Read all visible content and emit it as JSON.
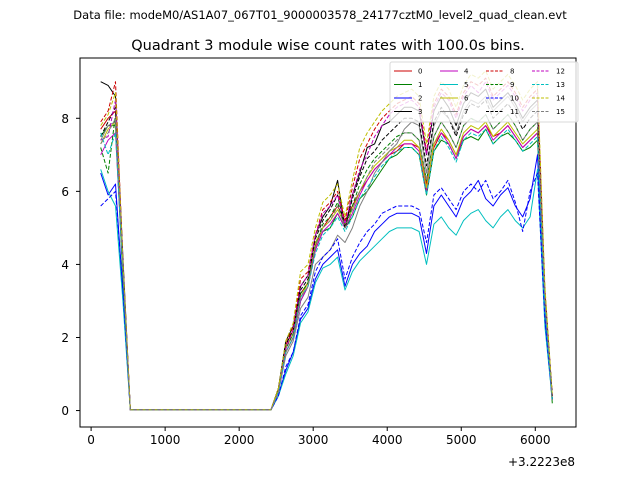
{
  "header": {
    "data_file": "Data file: modeM0/AS1A07_067T01_9000003578_24177cztM0_level2_quad_clean.evt"
  },
  "chart_data": {
    "type": "line",
    "title": "Quadrant 3 module wise count rates with 100.0s bins.",
    "xlabel": "",
    "ylabel": "",
    "x_offset_label": "+3.2223e8",
    "xlim": [
      -150,
      6550
    ],
    "ylim": [
      -0.45,
      9.65
    ],
    "x_ticks": [
      0,
      1000,
      2000,
      3000,
      4000,
      5000,
      6000
    ],
    "x_tick_labels": [
      "0",
      "1000",
      "2000",
      "3000",
      "4000",
      "5000",
      "6000"
    ],
    "y_ticks": [
      0,
      2,
      4,
      6,
      8
    ],
    "y_tick_labels": [
      "0",
      "2",
      "4",
      "6",
      "8"
    ],
    "grid": false,
    "legend_position": "top-right",
    "legend_columns": 4,
    "x": [
      130,
      230,
      330,
      430,
      530,
      630,
      730,
      830,
      930,
      1030,
      1130,
      1230,
      1330,
      1430,
      1530,
      1630,
      1730,
      1830,
      1930,
      2030,
      2130,
      2230,
      2330,
      2430,
      2530,
      2630,
      2730,
      2830,
      2930,
      3030,
      3130,
      3230,
      3330,
      3430,
      3530,
      3630,
      3730,
      3830,
      3930,
      4030,
      4130,
      4230,
      4330,
      4430,
      4530,
      4630,
      4730,
      4830,
      4930,
      5030,
      5130,
      5230,
      5330,
      5430,
      5530,
      5630,
      5730,
      5830,
      5930,
      6030,
      6130,
      6230
    ],
    "series": [
      {
        "name": "0",
        "color": "#cc0000",
        "dash": "solid",
        "values": [
          7.7,
          8.0,
          8.2,
          4.0,
          0.02,
          0.02,
          0.02,
          0.02,
          0.02,
          0.02,
          0.02,
          0.02,
          0.02,
          0.02,
          0.02,
          0.02,
          0.02,
          0.02,
          0.02,
          0.02,
          0.02,
          0.02,
          0.02,
          0.02,
          0.6,
          1.8,
          2.2,
          3.2,
          3.5,
          4.5,
          5.0,
          5.3,
          5.6,
          5.2,
          5.6,
          6.0,
          6.3,
          6.6,
          6.8,
          7.0,
          7.1,
          7.3,
          7.3,
          7.2,
          6.2,
          7.2,
          7.6,
          7.4,
          7.0,
          7.5,
          7.7,
          7.6,
          7.8,
          7.5,
          7.6,
          7.8,
          7.5,
          7.2,
          7.4,
          7.6,
          3.0,
          0.4
        ]
      },
      {
        "name": "1",
        "color": "#008000",
        "dash": "solid",
        "values": [
          7.5,
          7.8,
          7.8,
          3.6,
          0.02,
          0.02,
          0.02,
          0.02,
          0.02,
          0.02,
          0.02,
          0.02,
          0.02,
          0.02,
          0.02,
          0.02,
          0.02,
          0.02,
          0.02,
          0.02,
          0.02,
          0.02,
          0.02,
          0.02,
          0.5,
          1.6,
          2.0,
          3.0,
          3.4,
          4.4,
          4.9,
          5.0,
          5.4,
          5.0,
          5.3,
          5.8,
          6.0,
          6.3,
          6.6,
          6.9,
          7.0,
          7.2,
          7.2,
          7.0,
          5.9,
          7.1,
          7.4,
          7.3,
          6.9,
          7.4,
          7.5,
          7.4,
          7.7,
          7.3,
          7.5,
          7.6,
          7.4,
          7.1,
          7.2,
          7.4,
          2.8,
          0.2
        ]
      },
      {
        "name": "2",
        "color": "#0000ff",
        "dash": "solid",
        "values": [
          6.5,
          5.9,
          6.2,
          3.2,
          0.02,
          0.02,
          0.02,
          0.02,
          0.02,
          0.02,
          0.02,
          0.02,
          0.02,
          0.02,
          0.02,
          0.02,
          0.02,
          0.02,
          0.02,
          0.02,
          0.02,
          0.02,
          0.02,
          0.02,
          0.4,
          1.1,
          1.6,
          2.5,
          2.8,
          3.6,
          4.0,
          4.2,
          4.4,
          3.4,
          4.0,
          4.3,
          4.5,
          4.9,
          5.1,
          5.3,
          5.4,
          5.4,
          5.4,
          5.3,
          4.3,
          5.6,
          5.9,
          5.6,
          5.3,
          5.8,
          6.0,
          6.3,
          5.8,
          5.6,
          5.9,
          6.1,
          5.6,
          5.3,
          5.8,
          7.0,
          2.5,
          0.3
        ]
      },
      {
        "name": "3",
        "color": "#000000",
        "dash": "solid",
        "values": [
          9.0,
          8.9,
          8.6,
          4.2,
          0.02,
          0.02,
          0.02,
          0.02,
          0.02,
          0.02,
          0.02,
          0.02,
          0.02,
          0.02,
          0.02,
          0.02,
          0.02,
          0.02,
          0.02,
          0.02,
          0.02,
          0.02,
          0.02,
          0.02,
          0.6,
          1.9,
          2.3,
          3.4,
          3.7,
          4.8,
          5.3,
          5.6,
          6.3,
          5.0,
          5.9,
          6.5,
          7.2,
          7.3,
          7.8,
          7.9,
          8.1,
          8.3,
          8.3,
          8.2,
          7.0,
          8.2,
          8.6,
          8.3,
          7.8,
          8.4,
          8.7,
          8.6,
          8.8,
          8.3,
          8.5,
          8.7,
          8.4,
          8.0,
          8.3,
          8.5,
          3.2,
          0.4
        ]
      },
      {
        "name": "4",
        "color": "#bf00bf",
        "dash": "solid",
        "values": [
          7.0,
          7.4,
          7.6,
          3.8,
          0.02,
          0.02,
          0.02,
          0.02,
          0.02,
          0.02,
          0.02,
          0.02,
          0.02,
          0.02,
          0.02,
          0.02,
          0.02,
          0.02,
          0.02,
          0.02,
          0.02,
          0.02,
          0.02,
          0.02,
          0.5,
          1.6,
          2.0,
          3.0,
          3.4,
          4.4,
          4.9,
          5.1,
          5.4,
          5.0,
          5.4,
          5.9,
          6.3,
          6.6,
          6.8,
          7.0,
          7.2,
          7.3,
          7.3,
          7.1,
          6.0,
          7.3,
          7.6,
          7.3,
          6.9,
          7.5,
          7.7,
          7.6,
          7.8,
          7.4,
          7.6,
          7.8,
          7.5,
          7.2,
          7.4,
          7.6,
          2.9,
          0.3
        ]
      },
      {
        "name": "5",
        "color": "#00bfbf",
        "dash": "solid",
        "values": [
          6.6,
          6.0,
          5.6,
          3.0,
          0.02,
          0.02,
          0.02,
          0.02,
          0.02,
          0.02,
          0.02,
          0.02,
          0.02,
          0.02,
          0.02,
          0.02,
          0.02,
          0.02,
          0.02,
          0.02,
          0.02,
          0.02,
          0.02,
          0.02,
          0.4,
          1.0,
          1.5,
          2.4,
          2.7,
          3.5,
          3.9,
          4.0,
          4.2,
          3.3,
          3.8,
          4.1,
          4.3,
          4.5,
          4.7,
          4.9,
          5.0,
          5.0,
          5.0,
          4.9,
          4.0,
          5.1,
          5.3,
          5.0,
          4.8,
          5.2,
          5.4,
          5.5,
          5.2,
          5.0,
          5.3,
          5.5,
          5.2,
          5.0,
          5.3,
          6.6,
          2.3,
          0.3
        ]
      },
      {
        "name": "6",
        "color": "#bfbf00",
        "dash": "solid",
        "values": [
          7.3,
          7.7,
          7.9,
          3.9,
          0.02,
          0.02,
          0.02,
          0.02,
          0.02,
          0.02,
          0.02,
          0.02,
          0.02,
          0.02,
          0.02,
          0.02,
          0.02,
          0.02,
          0.02,
          0.02,
          0.02,
          0.02,
          0.02,
          0.02,
          0.6,
          1.7,
          2.1,
          3.1,
          3.5,
          4.6,
          5.0,
          5.2,
          5.5,
          5.1,
          5.5,
          6.0,
          6.4,
          6.7,
          6.9,
          7.1,
          7.2,
          7.4,
          7.4,
          7.2,
          6.1,
          7.3,
          7.7,
          7.4,
          7.0,
          7.6,
          7.8,
          7.7,
          7.9,
          7.5,
          7.7,
          7.9,
          7.6,
          7.3,
          7.5,
          7.7,
          3.0,
          0.3
        ]
      },
      {
        "name": "7",
        "color": "#808080",
        "dash": "solid",
        "values": [
          7.4,
          7.8,
          7.9,
          3.9,
          0.02,
          0.02,
          0.02,
          0.02,
          0.02,
          0.02,
          0.02,
          0.02,
          0.02,
          0.02,
          0.02,
          0.02,
          0.02,
          0.02,
          0.02,
          0.02,
          0.02,
          0.02,
          0.02,
          0.02,
          0.5,
          1.5,
          1.9,
          2.8,
          3.1,
          4.0,
          4.2,
          4.4,
          4.8,
          4.6,
          5.0,
          5.6,
          6.0,
          6.5,
          6.8,
          7.1,
          7.3,
          7.7,
          7.9,
          7.8,
          6.5,
          7.8,
          8.2,
          8.0,
          7.6,
          8.2,
          8.5,
          8.4,
          8.6,
          8.2,
          8.4,
          8.6,
          8.3,
          7.9,
          8.2,
          8.4,
          3.1,
          0.3
        ]
      },
      {
        "name": "8",
        "color": "#cc0000",
        "dash": "dashed",
        "values": [
          7.9,
          8.2,
          9.0,
          4.1,
          0.02,
          0.02,
          0.02,
          0.02,
          0.02,
          0.02,
          0.02,
          0.02,
          0.02,
          0.02,
          0.02,
          0.02,
          0.02,
          0.02,
          0.02,
          0.02,
          0.02,
          0.02,
          0.02,
          0.02,
          0.6,
          1.8,
          2.3,
          3.6,
          3.8,
          4.8,
          5.5,
          5.7,
          6.0,
          5.2,
          6.1,
          6.9,
          7.3,
          7.7,
          8.0,
          8.2,
          8.4,
          8.5,
          8.6,
          8.4,
          7.1,
          8.4,
          8.8,
          8.6,
          8.1,
          8.7,
          9.0,
          8.9,
          9.1,
          8.6,
          8.8,
          9.0,
          8.7,
          8.3,
          8.6,
          8.8,
          3.3,
          0.4
        ]
      },
      {
        "name": "9",
        "color": "#008000",
        "dash": "dashed",
        "values": [
          7.2,
          6.5,
          8.1,
          3.7,
          0.02,
          0.02,
          0.02,
          0.02,
          0.02,
          0.02,
          0.02,
          0.02,
          0.02,
          0.02,
          0.02,
          0.02,
          0.02,
          0.02,
          0.02,
          0.02,
          0.02,
          0.02,
          0.02,
          0.02,
          0.5,
          1.7,
          2.1,
          3.2,
          3.5,
          4.5,
          5.1,
          5.3,
          5.7,
          5.0,
          5.6,
          6.2,
          6.6,
          6.9,
          7.1,
          7.3,
          7.5,
          7.6,
          7.6,
          7.4,
          6.3,
          7.5,
          7.9,
          7.6,
          7.2,
          7.8,
          8.0,
          7.9,
          8.1,
          7.7,
          7.9,
          8.1,
          7.8,
          7.4,
          7.7,
          7.9,
          3.0,
          0.3
        ]
      },
      {
        "name": "10",
        "color": "#0000ff",
        "dash": "dashed",
        "values": [
          5.6,
          5.8,
          6.0,
          3.3,
          0.02,
          0.02,
          0.02,
          0.02,
          0.02,
          0.02,
          0.02,
          0.02,
          0.02,
          0.02,
          0.02,
          0.02,
          0.02,
          0.02,
          0.02,
          0.02,
          0.02,
          0.02,
          0.02,
          0.02,
          0.4,
          1.2,
          1.6,
          2.6,
          2.9,
          3.8,
          4.2,
          4.4,
          4.7,
          3.6,
          4.2,
          4.6,
          4.9,
          5.1,
          5.4,
          5.5,
          5.6,
          5.6,
          5.6,
          5.5,
          4.6,
          5.9,
          6.1,
          5.8,
          5.5,
          6.0,
          6.2,
          6.0,
          6.3,
          5.8,
          6.0,
          6.3,
          5.7,
          4.9,
          6.0,
          6.5,
          2.5,
          0.3
        ]
      },
      {
        "name": "11",
        "color": "#000000",
        "dash": "dashed",
        "values": [
          7.5,
          7.9,
          8.3,
          4.0,
          0.02,
          0.02,
          0.02,
          0.02,
          0.02,
          0.02,
          0.02,
          0.02,
          0.02,
          0.02,
          0.02,
          0.02,
          0.02,
          0.02,
          0.02,
          0.02,
          0.02,
          0.02,
          0.02,
          0.02,
          0.6,
          1.8,
          2.2,
          3.3,
          3.6,
          4.7,
          5.2,
          5.5,
          5.9,
          5.0,
          5.8,
          6.4,
          6.9,
          7.1,
          7.4,
          7.6,
          7.8,
          8.0,
          8.0,
          7.9,
          6.7,
          7.9,
          8.3,
          8.0,
          7.5,
          8.1,
          8.4,
          8.3,
          8.5,
          8.0,
          8.2,
          8.4,
          8.1,
          7.7,
          8.0,
          8.2,
          3.1,
          0.4
        ]
      },
      {
        "name": "12",
        "color": "#bf00bf",
        "dash": "dashed",
        "values": [
          7.4,
          7.5,
          8.5,
          4.0,
          0.02,
          0.02,
          0.02,
          0.02,
          0.02,
          0.02,
          0.02,
          0.02,
          0.02,
          0.02,
          0.02,
          0.02,
          0.02,
          0.02,
          0.02,
          0.02,
          0.02,
          0.02,
          0.02,
          0.02,
          0.5,
          1.7,
          2.2,
          3.4,
          3.7,
          4.8,
          5.4,
          5.6,
          5.9,
          5.1,
          5.9,
          6.6,
          7.0,
          7.5,
          7.8,
          8.1,
          8.3,
          8.4,
          8.5,
          8.3,
          7.0,
          8.3,
          8.7,
          8.5,
          8.0,
          8.6,
          8.9,
          8.7,
          9.0,
          8.5,
          8.7,
          8.9,
          8.6,
          8.2,
          8.5,
          8.7,
          3.2,
          0.4
        ]
      },
      {
        "name": "13",
        "color": "#00bfbf",
        "dash": "dashed",
        "values": [
          7.6,
          7.0,
          7.6,
          3.8,
          0.02,
          0.02,
          0.02,
          0.02,
          0.02,
          0.02,
          0.02,
          0.02,
          0.02,
          0.02,
          0.02,
          0.02,
          0.02,
          0.02,
          0.02,
          0.02,
          0.02,
          0.02,
          0.02,
          0.02,
          0.5,
          1.6,
          2.0,
          3.1,
          3.4,
          4.3,
          4.8,
          5.0,
          5.3,
          4.9,
          5.3,
          5.8,
          6.1,
          6.4,
          6.7,
          6.9,
          7.1,
          7.2,
          7.2,
          7.0,
          5.9,
          7.1,
          7.5,
          7.2,
          6.8,
          7.4,
          7.6,
          7.5,
          7.7,
          7.3,
          7.5,
          7.7,
          7.4,
          7.1,
          7.3,
          7.5,
          2.9,
          0.3
        ]
      },
      {
        "name": "14",
        "color": "#bfbf00",
        "dash": "dashed",
        "values": [
          7.8,
          8.1,
          8.7,
          4.1,
          0.02,
          0.02,
          0.02,
          0.02,
          0.02,
          0.02,
          0.02,
          0.02,
          0.02,
          0.02,
          0.02,
          0.02,
          0.02,
          0.02,
          0.02,
          0.02,
          0.02,
          0.02,
          0.02,
          0.02,
          0.6,
          1.9,
          2.4,
          3.8,
          4.0,
          5.0,
          5.7,
          5.9,
          6.2,
          5.3,
          6.3,
          7.2,
          7.6,
          7.9,
          8.2,
          8.4,
          8.6,
          8.7,
          8.8,
          8.6,
          7.3,
          8.6,
          9.0,
          8.8,
          8.3,
          8.9,
          9.2,
          9.1,
          9.3,
          8.8,
          9.0,
          9.2,
          8.9,
          8.5,
          8.8,
          9.0,
          3.4,
          0.4
        ]
      },
      {
        "name": "15",
        "color": "#808080",
        "dash": "dashed",
        "values": [
          7.3,
          7.6,
          8.0,
          3.9,
          0.02,
          0.02,
          0.02,
          0.02,
          0.02,
          0.02,
          0.02,
          0.02,
          0.02,
          0.02,
          0.02,
          0.02,
          0.02,
          0.02,
          0.02,
          0.02,
          0.02,
          0.02,
          0.02,
          0.02,
          0.5,
          1.6,
          2.0,
          3.1,
          3.4,
          4.5,
          5.0,
          5.2,
          5.6,
          5.0,
          5.5,
          6.0,
          6.4,
          6.8,
          7.0,
          7.2,
          7.4,
          7.6,
          7.6,
          7.4,
          6.3,
          7.5,
          7.9,
          7.6,
          7.2,
          7.8,
          8.0,
          7.9,
          8.1,
          7.7,
          7.9,
          8.1,
          7.8,
          7.4,
          7.7,
          7.9,
          3.0,
          0.3
        ]
      }
    ]
  }
}
